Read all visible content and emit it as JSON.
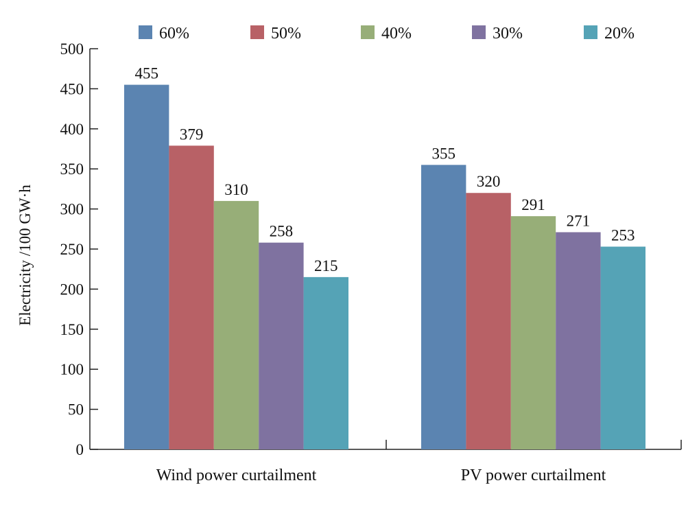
{
  "chart_data": {
    "type": "bar",
    "categories": [
      "Wind power curtailment",
      "PV power curtailment"
    ],
    "series": [
      {
        "name": "60%",
        "color": "#5b84b1",
        "values": [
          455,
          355
        ]
      },
      {
        "name": "50%",
        "color": "#b86166",
        "values": [
          379,
          320
        ]
      },
      {
        "name": "40%",
        "color": "#97ae78",
        "values": [
          310,
          291
        ]
      },
      {
        "name": "30%",
        "color": "#7f72a0",
        "values": [
          258,
          271
        ]
      },
      {
        "name": "20%",
        "color": "#55a3b6",
        "values": [
          215,
          253
        ]
      }
    ],
    "data_labels": [
      [
        "455",
        "355"
      ],
      [
        "379",
        "320"
      ],
      [
        "310",
        "291"
      ],
      [
        "258",
        "271"
      ],
      [
        "215",
        "253"
      ]
    ],
    "title": "",
    "xlabel": "",
    "ylabel": "Electricity /100 GW·h",
    "ylim": [
      0,
      500
    ],
    "yticks": [
      0,
      50,
      100,
      150,
      200,
      250,
      300,
      350,
      400,
      450,
      500
    ],
    "grid": false,
    "legend": "top"
  }
}
